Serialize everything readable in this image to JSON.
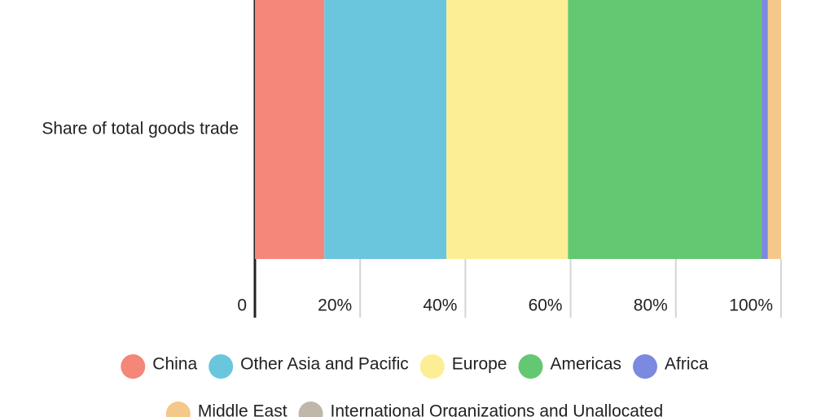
{
  "chart_data": {
    "type": "stacked-bar",
    "orientation": "horizontal",
    "categories": [
      "Share of total goods trade"
    ],
    "series": [
      {
        "name": "China",
        "color": "#f4877a",
        "values": [
          13.2
        ]
      },
      {
        "name": "Other Asia and Pacific",
        "color": "#6ac6dc",
        "values": [
          23.2
        ]
      },
      {
        "name": "Europe",
        "color": "#fbee95",
        "values": [
          23.1
        ]
      },
      {
        "name": "Americas",
        "color": "#64c872",
        "values": [
          36.8
        ]
      },
      {
        "name": "Africa",
        "color": "#7b8ae0",
        "values": [
          1.2
        ]
      },
      {
        "name": "Middle East",
        "color": "#f4c888",
        "values": [
          2.5
        ]
      },
      {
        "name": "International Organizations and Unallocated",
        "color": "#bfb7aa",
        "values": [
          0
        ]
      }
    ],
    "xlim": [
      0,
      100
    ],
    "xticks": [
      0,
      {
        "value": 20,
        "label": "20%"
      },
      {
        "value": 40,
        "label": "40%"
      },
      {
        "value": 60,
        "label": "60%"
      },
      {
        "value": 80,
        "label": "80%"
      },
      {
        "value": 100,
        "label": "100%"
      }
    ],
    "legend": "bottom"
  }
}
